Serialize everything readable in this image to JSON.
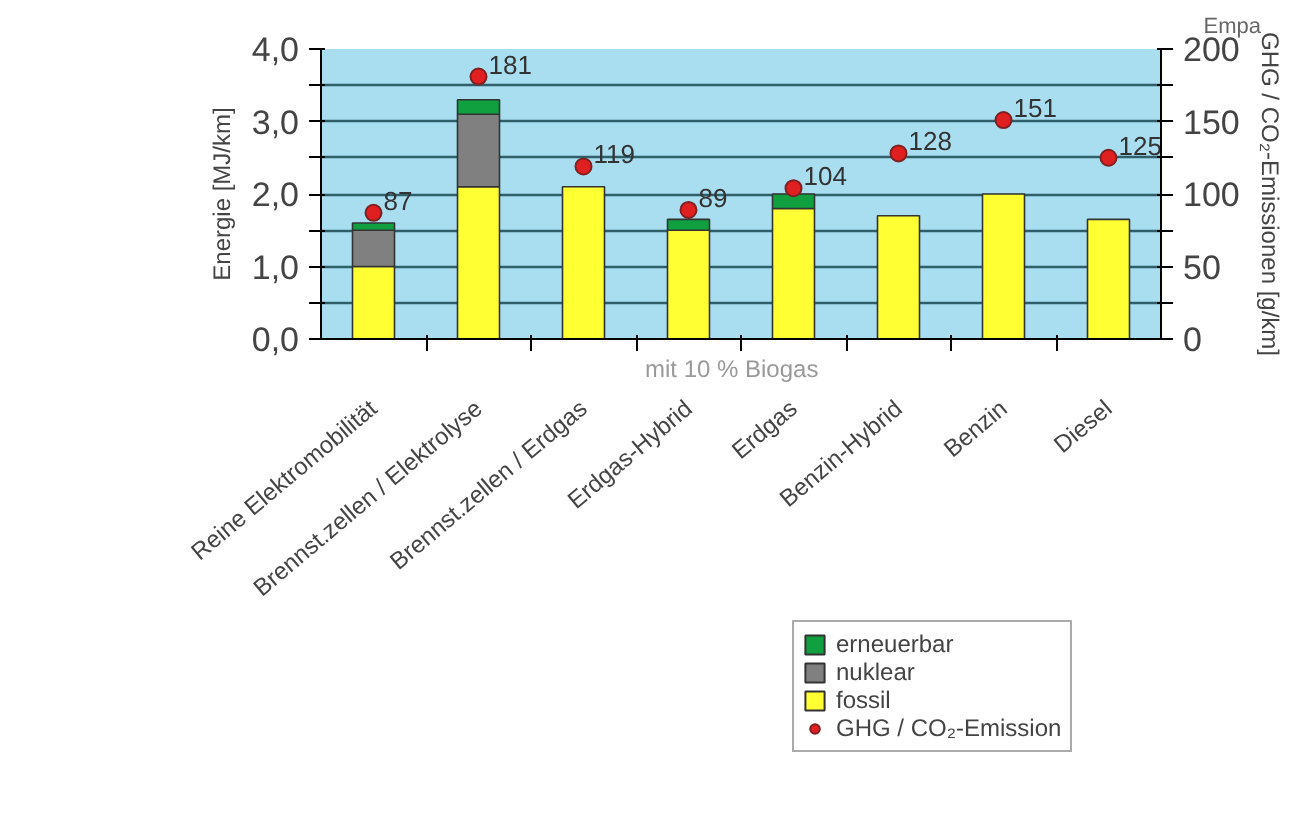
{
  "chart_data": {
    "type": "bar",
    "stacked": true,
    "categories": [
      "Reine Elektromobilität",
      "Brennst.zellen / Elektrolyse",
      "Brennst.zellen / Erdgas",
      "Erdgas-Hybrid",
      "Erdgas",
      "Benzin-Hybrid",
      "Benzin",
      "Diesel"
    ],
    "ylabel": "Energie [MJ/km]",
    "y2label": "GHG / CO₂-Emissionen [g/km]",
    "series": [
      {
        "name": "fossil",
        "color": "#ffff33",
        "values": [
          1.0,
          2.1,
          2.1,
          1.5,
          1.8,
          1.7,
          2.0,
          1.65
        ]
      },
      {
        "name": "nuklear",
        "color": "#808080",
        "values": [
          0.5,
          1.0,
          null,
          null,
          null,
          null,
          null,
          null
        ]
      },
      {
        "name": "erneuerbar",
        "color": "#10a040",
        "values": [
          0.1,
          0.2,
          null,
          0.15,
          0.2,
          null,
          null,
          null
        ]
      },
      {
        "name": "GHG / CO₂-Emission",
        "type": "scatter",
        "axis": "y2",
        "marker": "circle",
        "color": "#e02020",
        "values": [
          87,
          181,
          119,
          89,
          104,
          128,
          151,
          125
        ],
        "value_labels": [
          "87",
          "181",
          "119",
          "89",
          "104",
          "128",
          "151",
          "125"
        ]
      }
    ],
    "ylim": [
      0,
      4
    ],
    "yticks": [
      {
        "value": 0,
        "label": "0,0"
      },
      {
        "value": 0.5,
        "label": null
      },
      {
        "value": 1,
        "label": "1,0"
      },
      {
        "value": 1.5,
        "label": null
      },
      {
        "value": 2,
        "label": "2,0"
      },
      {
        "value": 2.5,
        "label": null
      },
      {
        "value": 3,
        "label": "3,0"
      },
      {
        "value": 3.5,
        "label": null
      },
      {
        "value": 4,
        "label": "4,0"
      }
    ],
    "y2lim": [
      0,
      200
    ],
    "y2ticks": [
      0,
      {
        "value": 25,
        "label": null
      },
      50,
      {
        "value": 75,
        "label": null
      },
      100,
      {
        "value": 125,
        "label": null
      },
      150,
      {
        "value": 175,
        "label": null
      },
      200
    ],
    "grid": "y",
    "legend": "bottom right",
    "annotations": [
      "mit 10 % Biogas",
      "Empa"
    ]
  }
}
